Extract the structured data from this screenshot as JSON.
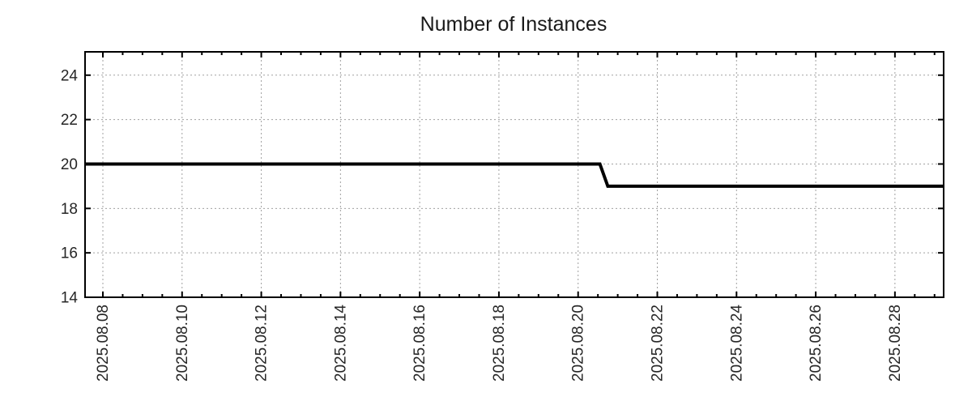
{
  "page": {
    "background": "#ffffff"
  },
  "chart_data": {
    "type": "line",
    "title": "Number of Instances",
    "legend": "none",
    "grid": true,
    "colors": {
      "series": "#000000",
      "grid": "#a0a0a0",
      "axis": "#000000",
      "text": "#262626",
      "title": "#1a1a1a"
    },
    "x_axis": {
      "kind": "date",
      "epoch_label": "2025.08.08",
      "range_days": [
        -0.45,
        21.23
      ],
      "minor_tick_step_days": 0.5,
      "ticks": [
        {
          "day": 0,
          "label": "2025.08.08"
        },
        {
          "day": 2,
          "label": "2025.08.10"
        },
        {
          "day": 4,
          "label": "2025.08.12"
        },
        {
          "day": 6,
          "label": "2025.08.14"
        },
        {
          "day": 8,
          "label": "2025.08.16"
        },
        {
          "day": 10,
          "label": "2025.08.18"
        },
        {
          "day": 12,
          "label": "2025.08.20"
        },
        {
          "day": 14,
          "label": "2025.08.22"
        },
        {
          "day": 16,
          "label": "2025.08.24"
        },
        {
          "day": 18,
          "label": "2025.08.26"
        },
        {
          "day": 20,
          "label": "2025.08.28"
        }
      ]
    },
    "y_axis": {
      "range": [
        14,
        25.05
      ],
      "ticks": [
        {
          "value": 14,
          "label": "14"
        },
        {
          "value": 16,
          "label": "16"
        },
        {
          "value": 18,
          "label": "18"
        },
        {
          "value": 20,
          "label": "20"
        },
        {
          "value": 22,
          "label": "22"
        },
        {
          "value": 24,
          "label": "24"
        }
      ]
    },
    "series": [
      {
        "name": "instances",
        "color": "#000000",
        "stroke_width": 4,
        "points": [
          {
            "day": -0.45,
            "approx_date": "2025.08.07 ~13:00",
            "value": 20
          },
          {
            "day": 12.55,
            "approx_date": "2025.08.20 ~13:00",
            "value": 20
          },
          {
            "day": 12.75,
            "approx_date": "2025.08.20 ~18:00",
            "value": 19
          },
          {
            "day": 21.23,
            "approx_date": "2025.08.29 ~06:00",
            "value": 19
          }
        ]
      }
    ]
  }
}
